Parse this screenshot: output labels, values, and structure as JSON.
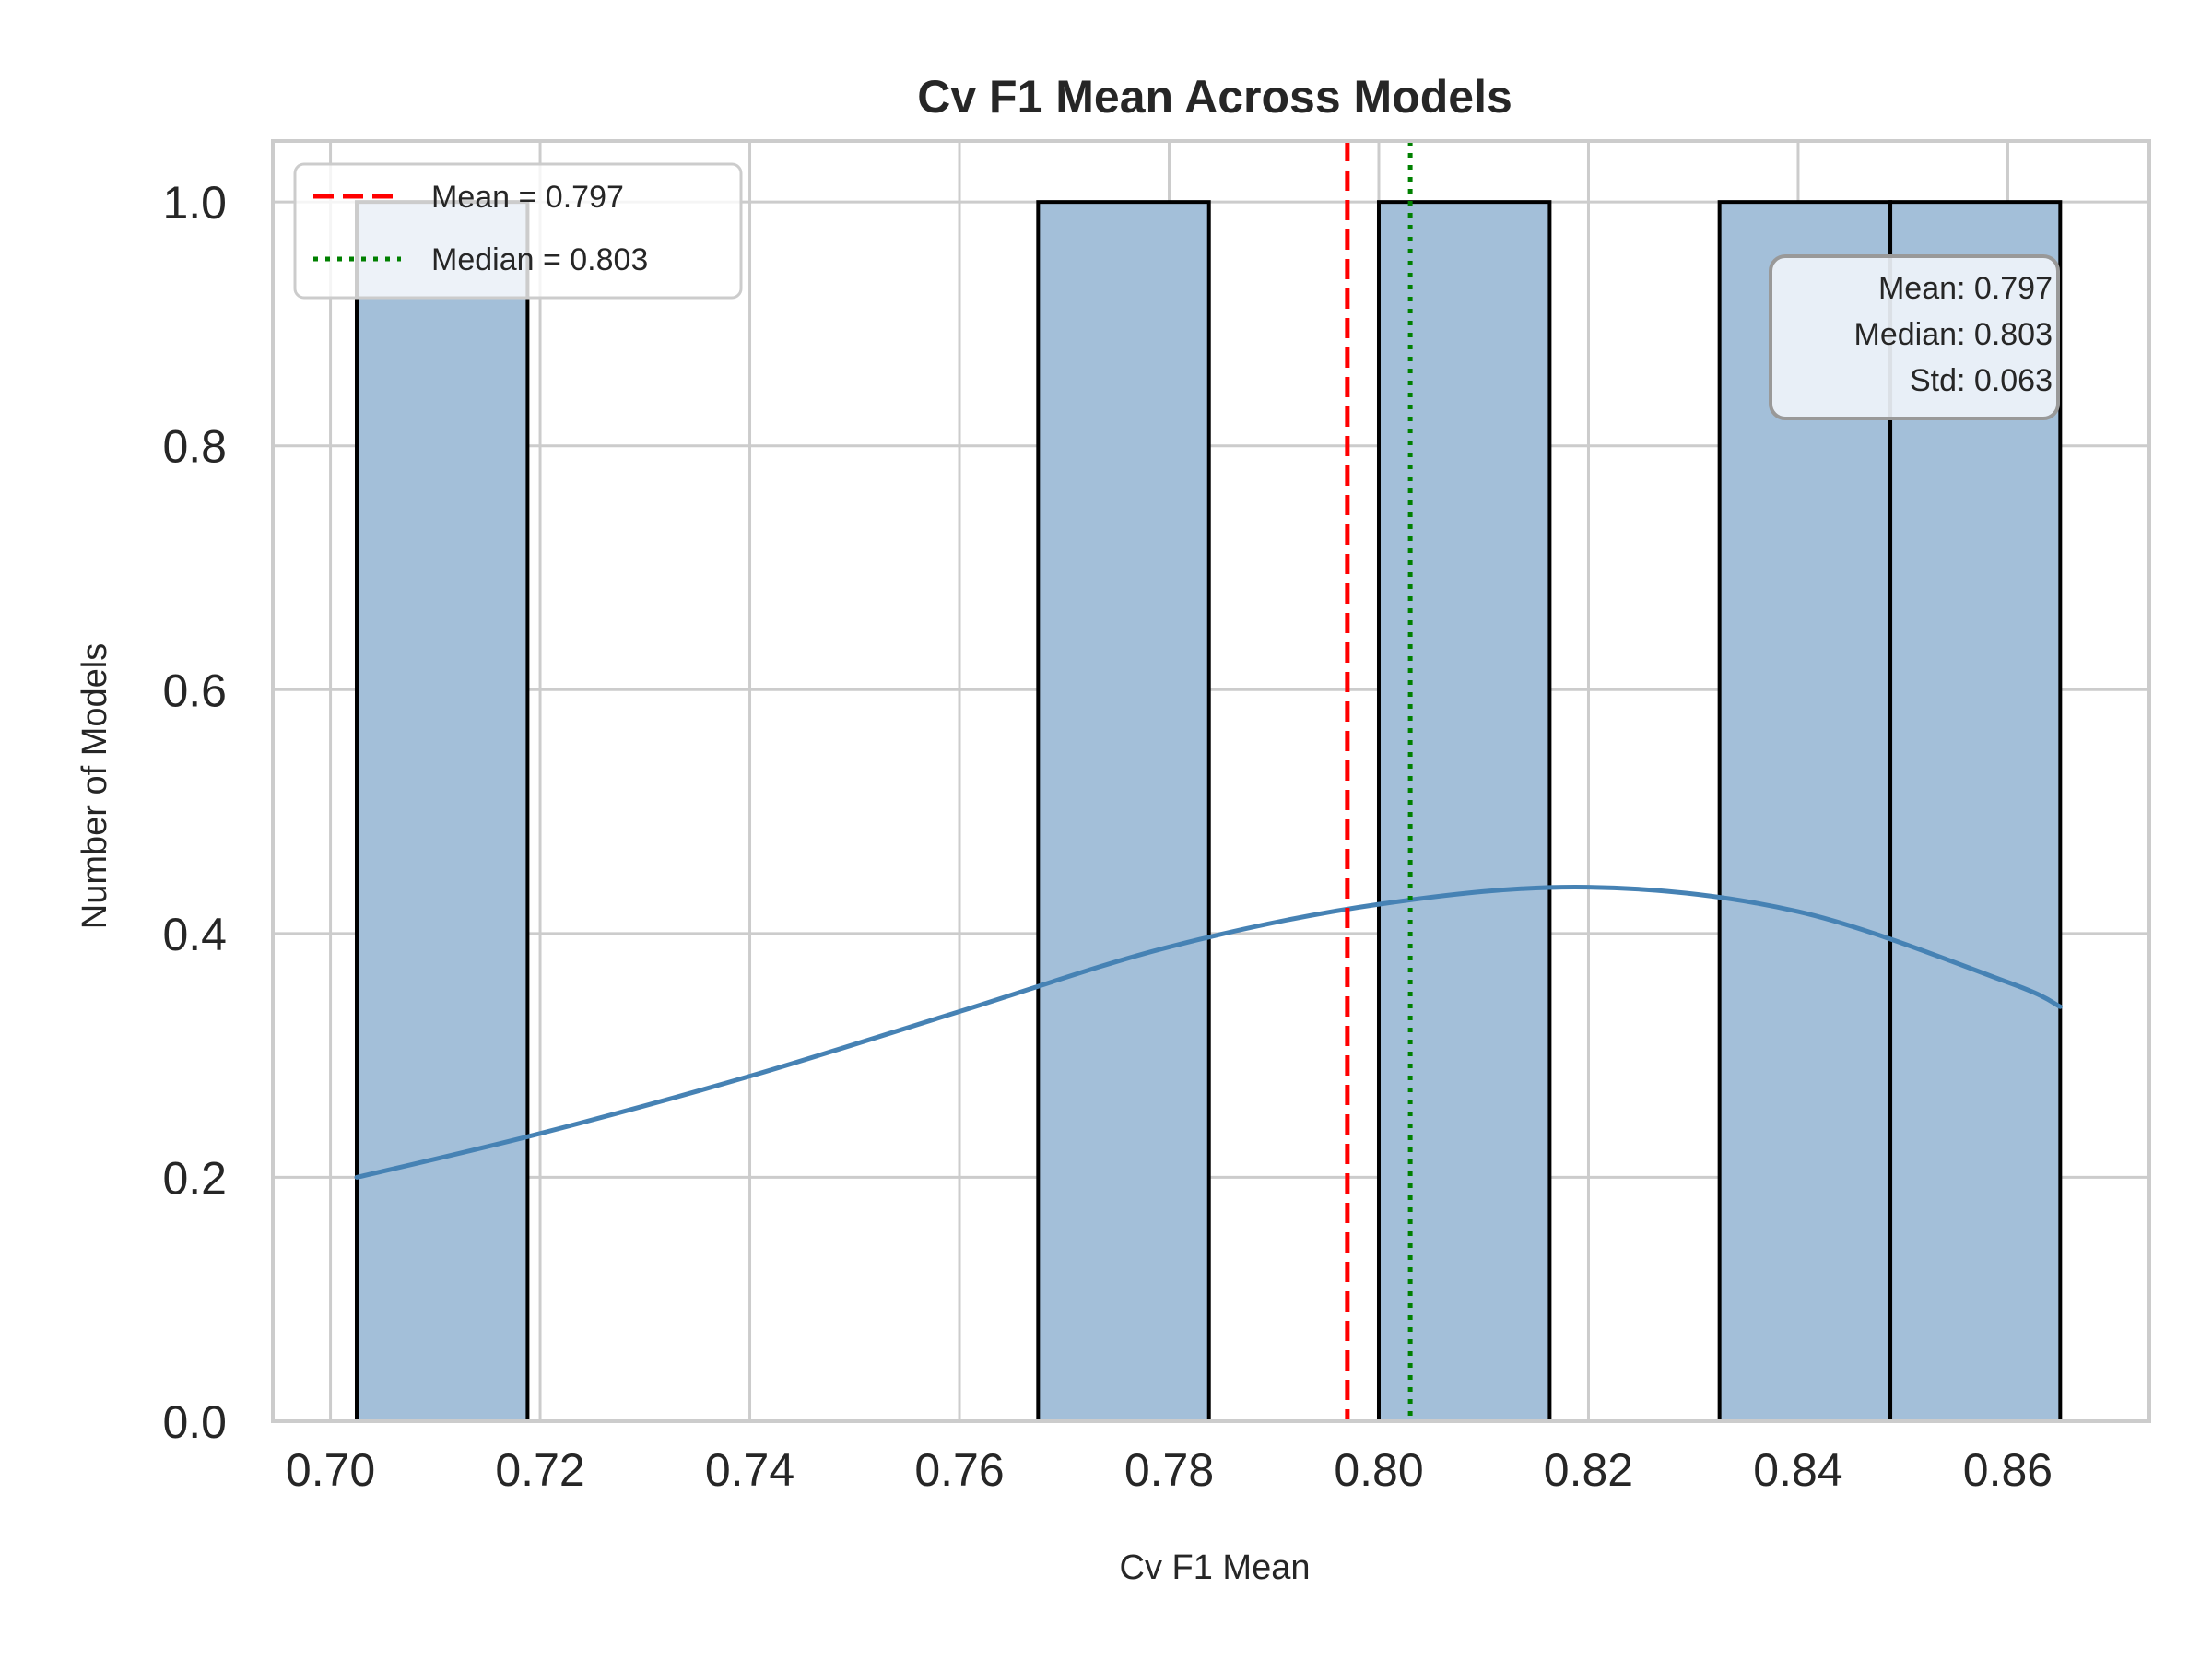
{
  "chart_data": {
    "type": "bar",
    "title": "Cv F1 Mean Across Models",
    "xlabel": "Cv F1 Mean",
    "ylabel": "Number of Models",
    "xlim": [
      0.6945,
      0.8735
    ],
    "ylim": [
      0,
      1.05
    ],
    "xticks": [
      "0.70",
      "0.72",
      "0.74",
      "0.76",
      "0.78",
      "0.80",
      "0.82",
      "0.84",
      "0.86"
    ],
    "yticks": [
      "0.0",
      "0.2",
      "0.4",
      "0.6",
      "0.8",
      "1.0"
    ],
    "grid": true,
    "bins": [
      {
        "start": 0.7025,
        "end": 0.7188,
        "count": 1
      },
      {
        "start": 0.7675,
        "end": 0.7838,
        "count": 1
      },
      {
        "start": 0.8,
        "end": 0.8163,
        "count": 1
      },
      {
        "start": 0.8325,
        "end": 0.8488,
        "count": 1
      },
      {
        "start": 0.8488,
        "end": 0.865,
        "count": 1
      }
    ],
    "kde": {
      "x": [
        0.7025,
        0.72,
        0.74,
        0.76,
        0.78,
        0.8,
        0.82,
        0.84,
        0.86,
        0.865
      ],
      "y": [
        0.2,
        0.236,
        0.283,
        0.336,
        0.389,
        0.424,
        0.438,
        0.418,
        0.36,
        0.34
      ]
    },
    "reference_lines": [
      {
        "name": "Mean = 0.797",
        "value": 0.797,
        "color": "#ff0000",
        "style": "dashed"
      },
      {
        "name": "Median = 0.803",
        "value": 0.803,
        "color": "#008000",
        "style": "dotted"
      }
    ],
    "legend_placement": "top-left",
    "stats_box": {
      "lines": [
        "Mean: 0.797",
        "Median: 0.803",
        "Std: 0.063"
      ],
      "placement": "top-right"
    },
    "colors": {
      "bar_fill": "#a3bfd9",
      "bar_edge": "#000000",
      "kde_line": "#4682b4",
      "grid": "#cccccc",
      "spine": "#cccccc"
    }
  }
}
